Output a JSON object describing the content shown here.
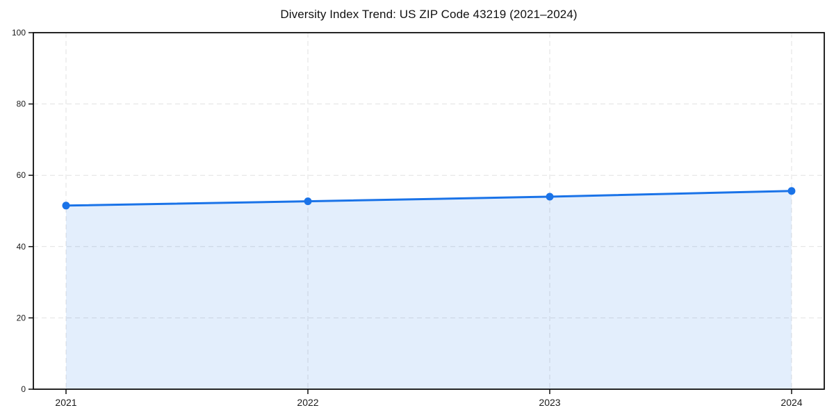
{
  "page": {
    "background": "#ffffff"
  },
  "chart_data": {
    "type": "line",
    "title": "Diversity Index Trend: US ZIP Code 43219 (2021–2024)",
    "x": [
      2021,
      2022,
      2023,
      2024
    ],
    "xticklabels": [
      "2021",
      "2022",
      "2023",
      "2024"
    ],
    "series": [
      {
        "name": "Diversity Index",
        "values": [
          51.5,
          52.7,
          54.0,
          55.6
        ]
      }
    ],
    "xlabel": "",
    "ylabel": "",
    "ylim": [
      0,
      100
    ],
    "yticks": [
      0,
      20,
      40,
      60,
      80,
      100
    ],
    "area_fill": true,
    "grid": {
      "show": true,
      "style": "dashed",
      "color": "#e1e1e1"
    },
    "legend": {
      "show": false,
      "position": "none"
    },
    "marker": {
      "shape": "circle",
      "radius": 5.5
    },
    "colors": {
      "line": "#1a73e8",
      "marker": "#1a73e8",
      "fill": "#1a73e8",
      "fill_opacity": 0.12,
      "spine": "#0d0d0d",
      "tick": "#0d0d0d",
      "tick_label": "#1a1a1a",
      "title": "#111111"
    }
  }
}
